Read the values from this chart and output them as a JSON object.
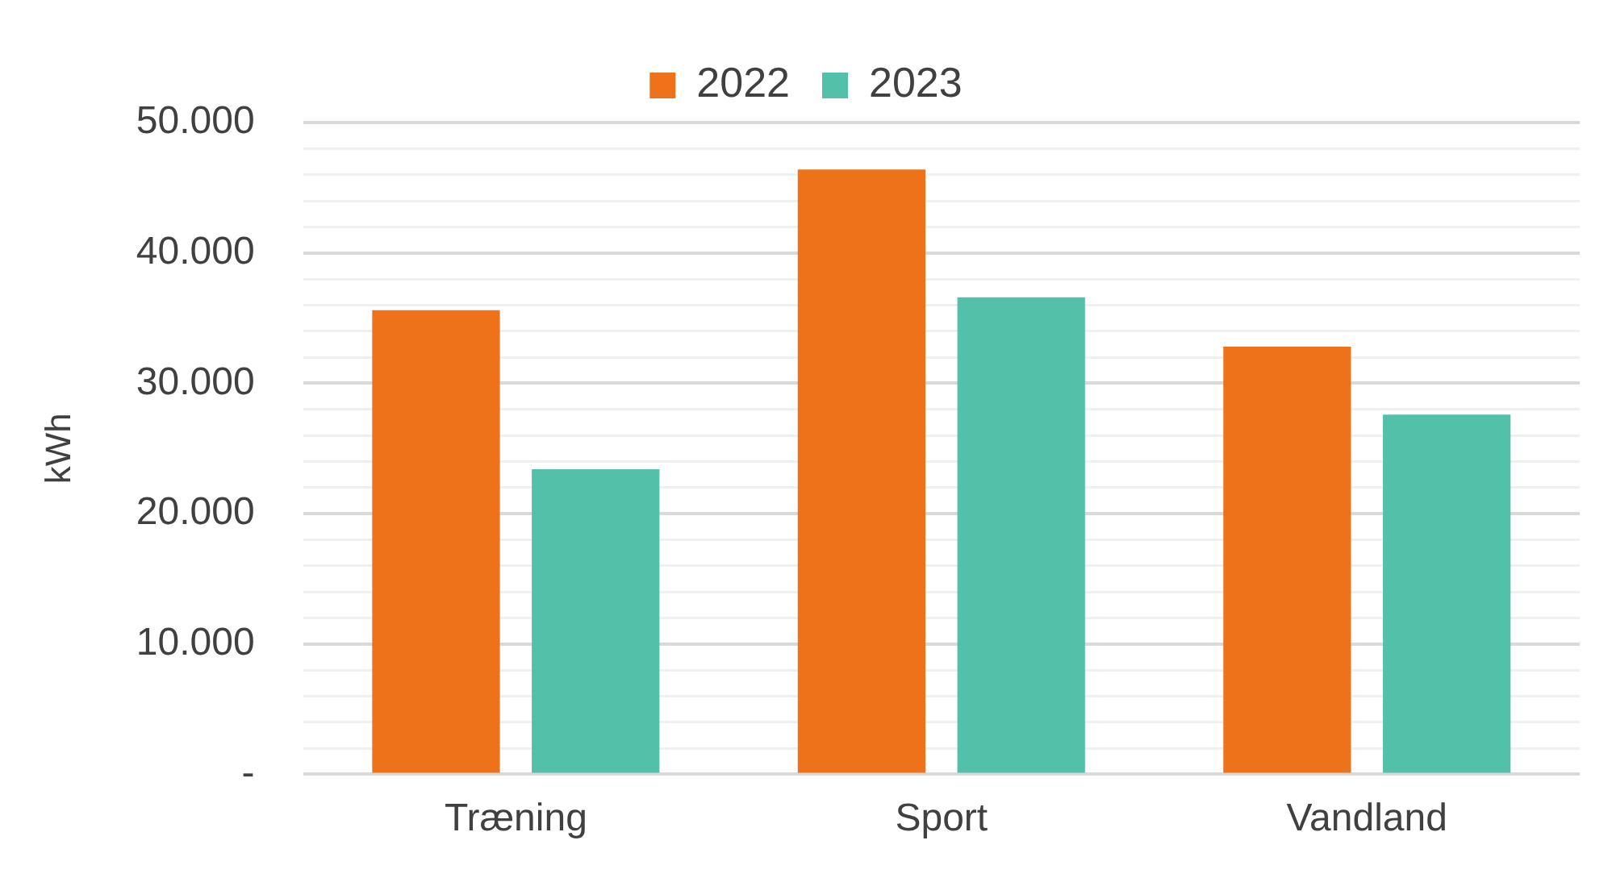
{
  "chart_data": {
    "type": "bar",
    "ylabel": "kWh",
    "categories": [
      "Træning",
      "Sport",
      "Vandland"
    ],
    "series": [
      {
        "name": "2022",
        "color": "#ed7219",
        "values": [
          35600,
          46400,
          32800
        ]
      },
      {
        "name": "2023",
        "color": "#53c0aa",
        "values": [
          23400,
          36600,
          27600
        ]
      }
    ],
    "ylim": [
      0,
      50000
    ],
    "yticks": [
      {
        "value": 0,
        "label": "-"
      },
      {
        "value": 2000,
        "label": null
      },
      {
        "value": 4000,
        "label": null
      },
      {
        "value": 6000,
        "label": null
      },
      {
        "value": 8000,
        "label": null
      },
      {
        "value": 10000,
        "label": "10.000"
      },
      {
        "value": 12000,
        "label": null
      },
      {
        "value": 14000,
        "label": null
      },
      {
        "value": 16000,
        "label": null
      },
      {
        "value": 18000,
        "label": null
      },
      {
        "value": 20000,
        "label": "20.000"
      },
      {
        "value": 22000,
        "label": null
      },
      {
        "value": 24000,
        "label": null
      },
      {
        "value": 26000,
        "label": null
      },
      {
        "value": 28000,
        "label": null
      },
      {
        "value": 30000,
        "label": "30.000"
      },
      {
        "value": 32000,
        "label": null
      },
      {
        "value": 34000,
        "label": null
      },
      {
        "value": 36000,
        "label": null
      },
      {
        "value": 38000,
        "label": null
      },
      {
        "value": 40000,
        "label": "40.000"
      },
      {
        "value": 42000,
        "label": null
      },
      {
        "value": 44000,
        "label": null
      },
      {
        "value": 46000,
        "label": null
      },
      {
        "value": 48000,
        "label": null
      },
      {
        "value": 50000,
        "label": "50.000"
      }
    ],
    "grid": "y",
    "legend": "top"
  }
}
